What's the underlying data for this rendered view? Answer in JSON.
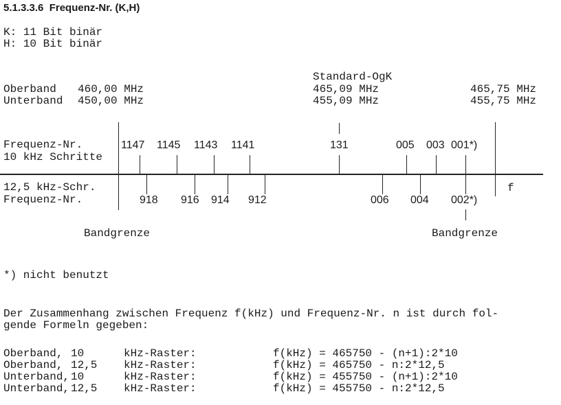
{
  "heading": "5.1.3.3.6  Frequenz-Nr. (K,H)",
  "k_line": "K: 11 Bit binär",
  "h_line": "H: 10 Bit binär",
  "diagram": {
    "oberband": "Oberband",
    "unterband": "Unterband",
    "ob_left": "460,00 MHz",
    "ub_left": "450,00 MHz",
    "standard": "Standard-OgK",
    "ob_mid": "465,09 MHz",
    "ub_mid": "455,09 MHz",
    "ob_right": "465,75 MHz",
    "ub_right": "455,75 MHz",
    "upper_label1": "Frequenz-Nr.",
    "upper_label2": "10 kHz Schritte",
    "lower_label1": "12,5 kHz-Schr.",
    "lower_label2": "Frequenz-Nr.",
    "upper_ticks": [
      "1147",
      "1145",
      "1143",
      "1141",
      "131",
      "005",
      "003",
      "001*)"
    ],
    "lower_ticks": [
      "918",
      "916",
      "914",
      "912",
      "006",
      "004",
      "002*)"
    ],
    "axis_label": "f",
    "band_left": "Bandgrenze",
    "band_right": "Bandgrenze"
  },
  "footnote": "*) nicht benutzt",
  "paragraph": [
    "Der Zusammenhang zwischen Frequenz f(kHz) und Frequenz-Nr. n ist durch fol-",
    "gende Formeln gegeben:"
  ],
  "formulas": [
    {
      "band": "Oberband,",
      "step": "10",
      "raster": "kHz-Raster:",
      "formula": "f(kHz) = 465750 - (n+1):2*10"
    },
    {
      "band": "Oberband,",
      "step": "12,5",
      "raster": "kHz-Raster:",
      "formula": "f(kHz) = 465750 - n:2*12,5"
    },
    {
      "band": "Unterband,",
      "step": "10",
      "raster": "kHz-Raster:",
      "formula": "f(kHz) = 455750 - (n+1):2*10"
    },
    {
      "band": "Unterband,",
      "step": "12,5",
      "raster": "kHz-Raster:",
      "formula": "f(kHz) = 455750 - n:2*12,5"
    }
  ]
}
